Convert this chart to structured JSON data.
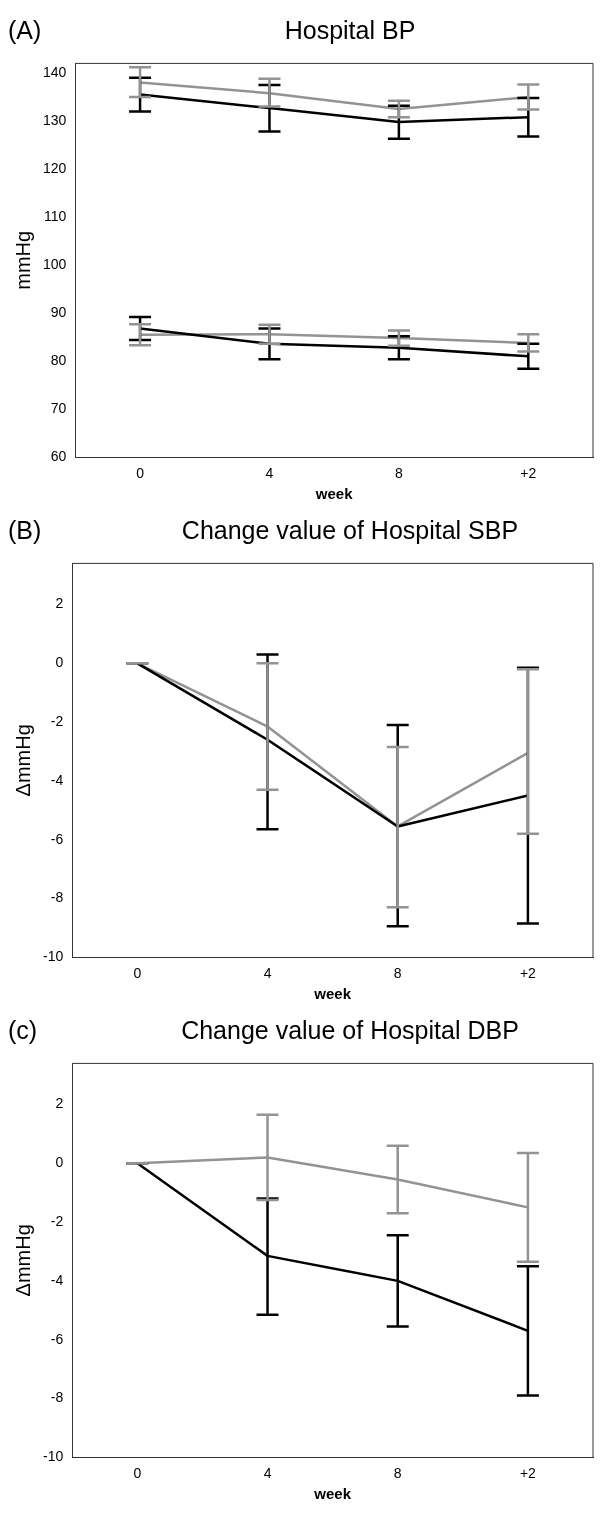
{
  "chart_data": [
    {
      "type": "line",
      "title": "Hospital BP",
      "annotations": [
        "(A)"
      ],
      "xlabel": "week",
      "ylabel": "mmHg",
      "categories": [
        "0",
        "4",
        "8",
        "+2"
      ],
      "ylim": [
        60,
        142
      ],
      "yticks": [
        60,
        70,
        80,
        90,
        100,
        110,
        120,
        130,
        140
      ],
      "grid": false,
      "legend": false,
      "marker": "none",
      "series": [
        {
          "color": "#000000",
          "values": [
            135.5,
            132.7,
            129.8,
            130.8
          ],
          "errors": [
            [
              132,
              139
            ],
            [
              127.8,
              137.5
            ],
            [
              126.3,
              133.2
            ],
            [
              126.8,
              134.8
            ]
          ]
        },
        {
          "color": "#939393",
          "values": [
            138,
            135.8,
            132.5,
            135
          ],
          "errors": [
            [
              135,
              141.2
            ],
            [
              133,
              138.8
            ],
            [
              130.8,
              134.2
            ],
            [
              132.4,
              137.6
            ]
          ]
        },
        {
          "color": "#000000",
          "values": [
            86.8,
            83.6,
            82.8,
            81
          ],
          "errors": [
            [
              84.4,
              89.2
            ],
            [
              80.4,
              86.8
            ],
            [
              80.4,
              85.2
            ],
            [
              78.4,
              83.6
            ]
          ]
        },
        {
          "color": "#939393",
          "values": [
            85.5,
            85.6,
            84.8,
            83.8
          ],
          "errors": [
            [
              83.3,
              87.7
            ],
            [
              83.6,
              87.6
            ],
            [
              83.2,
              86.4
            ],
            [
              82,
              85.6
            ]
          ]
        }
      ]
    },
    {
      "type": "line",
      "title": "Change value of Hospital SBP",
      "annotations": [
        "(B)"
      ],
      "xlabel": "week",
      "ylabel": "ΔmmHg",
      "categories": [
        "0",
        "4",
        "8",
        "+2"
      ],
      "ylim": [
        -10,
        3.4
      ],
      "yticks": [
        -10,
        -8,
        -6,
        -4,
        -2,
        0,
        2
      ],
      "grid": false,
      "legend": false,
      "marker": "none",
      "series": [
        {
          "color": "#000000",
          "values": [
            0,
            -2.6,
            -5.55,
            -4.5
          ],
          "errors": [
            0,
            [
              -5.65,
              0.3
            ],
            [
              -8.95,
              -2.1
            ],
            [
              -8.85,
              -0.15
            ]
          ]
        },
        {
          "color": "#939393",
          "values": [
            0,
            -2.15,
            -5.55,
            -3.05
          ],
          "errors": [
            0,
            [
              -4.3,
              0
            ],
            [
              -8.3,
              -2.85
            ],
            [
              -5.8,
              -0.2
            ]
          ]
        }
      ]
    },
    {
      "type": "line",
      "title": "Change value of Hospital DBP",
      "annotations": [
        "(c)"
      ],
      "xlabel": "week",
      "ylabel": "ΔmmHg",
      "categories": [
        "0",
        "4",
        "8",
        "+2"
      ],
      "ylim": [
        -10,
        3.4
      ],
      "yticks": [
        -10,
        -8,
        -6,
        -4,
        -2,
        0,
        2
      ],
      "grid": false,
      "legend": false,
      "marker": "none",
      "series": [
        {
          "color": "#000000",
          "values": [
            0,
            -3.15,
            -4.0,
            -5.7
          ],
          "errors": [
            0,
            [
              -5.15,
              -1.2
            ],
            [
              -5.55,
              -2.45
            ],
            [
              -7.9,
              -3.5
            ]
          ]
        },
        {
          "color": "#939393",
          "values": [
            0,
            0.2,
            -0.55,
            -1.5
          ],
          "errors": [
            0,
            [
              -1.25,
              1.65
            ],
            [
              -1.7,
              0.6
            ],
            [
              -3.35,
              0.35
            ]
          ]
        }
      ]
    }
  ]
}
